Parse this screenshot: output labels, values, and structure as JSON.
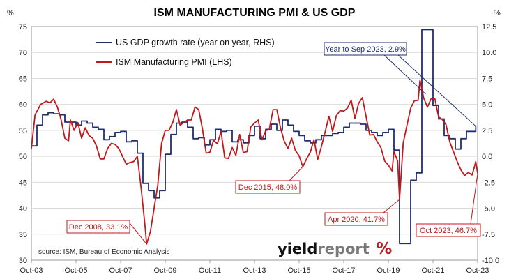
{
  "chart_data": {
    "type": "line",
    "title": "ISM MANUFACTURING PMI & US GDP",
    "left_axis": {
      "unit": "%",
      "range": [
        30,
        75
      ],
      "ticks": [
        "30",
        "35",
        "40",
        "45",
        "50",
        "55",
        "60",
        "65",
        "70",
        "75"
      ]
    },
    "right_axis": {
      "unit": "%",
      "range": [
        -10,
        12.5
      ],
      "ticks": [
        "-10.0",
        "-7.5",
        "-5.0",
        "-2.5",
        "0.0",
        "2.5",
        "5.0",
        "7.5",
        "10.0",
        "12.5"
      ]
    },
    "x_axis": {
      "range": [
        "Oct-03",
        "Oct-23"
      ],
      "ticks": [
        "Oct-03",
        "Oct-05",
        "Oct-07",
        "Oct-09",
        "Oct-11",
        "Oct-13",
        "Oct-15",
        "Oct-17",
        "Oct-19",
        "Oct-21",
        "Oct-23"
      ]
    },
    "series": [
      {
        "name": "US GDP growth rate (year on year, RHS)",
        "axis": "right",
        "color": "#1f2f6b",
        "points": [
          [
            "2003-10",
            1.0
          ],
          [
            "2004-01",
            3.0
          ],
          [
            "2004-04",
            4.0
          ],
          [
            "2004-07",
            4.2
          ],
          [
            "2004-10",
            4.1
          ],
          [
            "2005-01",
            4.0
          ],
          [
            "2005-04",
            3.3
          ],
          [
            "2005-07",
            3.3
          ],
          [
            "2005-10",
            3.0
          ],
          [
            "2006-01",
            3.4
          ],
          [
            "2006-04",
            3.2
          ],
          [
            "2006-07",
            2.8
          ],
          [
            "2006-10",
            2.6
          ],
          [
            "2007-01",
            1.6
          ],
          [
            "2007-04",
            1.9
          ],
          [
            "2007-07",
            2.3
          ],
          [
            "2007-10",
            2.4
          ],
          [
            "2008-01",
            1.4
          ],
          [
            "2008-04",
            1.5
          ],
          [
            "2008-07",
            0.3
          ],
          [
            "2008-10",
            -2.6
          ],
          [
            "2009-01",
            -3.3
          ],
          [
            "2009-04",
            -4.0
          ],
          [
            "2009-07",
            -3.3
          ],
          [
            "2009-10",
            0.2
          ],
          [
            "2010-01",
            2.1
          ],
          [
            "2010-04",
            3.2
          ],
          [
            "2010-07",
            3.3
          ],
          [
            "2010-10",
            2.8
          ],
          [
            "2011-01",
            1.7
          ],
          [
            "2011-04",
            1.8
          ],
          [
            "2011-07",
            1.1
          ],
          [
            "2011-10",
            1.6
          ],
          [
            "2012-01",
            2.6
          ],
          [
            "2012-04",
            2.4
          ],
          [
            "2012-07",
            2.5
          ],
          [
            "2012-10",
            1.4
          ],
          [
            "2013-01",
            1.6
          ],
          [
            "2013-04",
            1.3
          ],
          [
            "2013-07",
            2.0
          ],
          [
            "2013-10",
            2.9
          ],
          [
            "2014-01",
            1.7
          ],
          [
            "2014-04",
            2.6
          ],
          [
            "2014-07",
            3.1
          ],
          [
            "2014-10",
            2.5
          ],
          [
            "2015-01",
            3.5
          ],
          [
            "2015-04",
            3.0
          ],
          [
            "2015-07",
            2.4
          ],
          [
            "2015-10",
            2.0
          ],
          [
            "2016-01",
            1.5
          ],
          [
            "2016-04",
            1.3
          ],
          [
            "2016-07",
            1.6
          ],
          [
            "2016-10",
            2.0
          ],
          [
            "2017-01",
            2.0
          ],
          [
            "2017-04",
            2.2
          ],
          [
            "2017-07",
            2.3
          ],
          [
            "2017-10",
            2.8
          ],
          [
            "2018-01",
            3.2
          ],
          [
            "2018-04",
            3.2
          ],
          [
            "2018-07",
            3.1
          ],
          [
            "2018-10",
            2.5
          ],
          [
            "2019-01",
            2.3
          ],
          [
            "2019-04",
            2.0
          ],
          [
            "2019-07",
            2.3
          ],
          [
            "2019-10",
            2.6
          ],
          [
            "2020-01",
            0.6
          ],
          [
            "2020-04",
            -8.4
          ],
          [
            "2020-07",
            -8.4
          ],
          [
            "2020-10",
            -2.3
          ],
          [
            "2021-01",
            -1.6
          ],
          [
            "2021-04",
            12.2
          ],
          [
            "2021-07",
            12.2
          ],
          [
            "2021-10",
            4.9
          ],
          [
            "2022-01",
            3.6
          ],
          [
            "2022-04",
            2.0
          ],
          [
            "2022-07",
            1.7
          ],
          [
            "2022-10",
            0.7
          ],
          [
            "2023-01",
            1.7
          ],
          [
            "2023-04",
            2.4
          ],
          [
            "2023-07",
            2.4
          ],
          [
            "2023-09",
            2.9
          ]
        ]
      },
      {
        "name": "ISM Manufacturing PMI (LHS)",
        "axis": "left",
        "color": "#c0191b",
        "points": [
          [
            "2003-10",
            51.5
          ],
          [
            "2003-12",
            58.0
          ],
          [
            "2004-03",
            60.0
          ],
          [
            "2004-06",
            60.6
          ],
          [
            "2004-08",
            60.3
          ],
          [
            "2004-10",
            61.0
          ],
          [
            "2004-12",
            59.5
          ],
          [
            "2005-02",
            57.0
          ],
          [
            "2005-04",
            53.5
          ],
          [
            "2005-06",
            53.0
          ],
          [
            "2005-07",
            57.0
          ],
          [
            "2005-09",
            55.0
          ],
          [
            "2005-11",
            56.5
          ],
          [
            "2006-01",
            53.5
          ],
          [
            "2006-03",
            55.5
          ],
          [
            "2006-05",
            54.0
          ],
          [
            "2006-07",
            53.5
          ],
          [
            "2006-09",
            52.0
          ],
          [
            "2006-11",
            49.5
          ],
          [
            "2007-01",
            49.5
          ],
          [
            "2007-03",
            51.5
          ],
          [
            "2007-05",
            52.5
          ],
          [
            "2007-07",
            52.3
          ],
          [
            "2007-09",
            51.5
          ],
          [
            "2007-11",
            50.0
          ],
          [
            "2008-01",
            48.5
          ],
          [
            "2008-03",
            48.8
          ],
          [
            "2008-05",
            49.0
          ],
          [
            "2008-07",
            50.0
          ],
          [
            "2008-09",
            44.0
          ],
          [
            "2008-11",
            37.0
          ],
          [
            "2008-12",
            33.1
          ],
          [
            "2009-02",
            35.5
          ],
          [
            "2009-04",
            40.0
          ],
          [
            "2009-06",
            44.5
          ],
          [
            "2009-08",
            52.5
          ],
          [
            "2009-10",
            55.0
          ],
          [
            "2009-12",
            55.0
          ],
          [
            "2010-02",
            56.5
          ],
          [
            "2010-04",
            59.0
          ],
          [
            "2010-06",
            56.0
          ],
          [
            "2010-08",
            56.5
          ],
          [
            "2010-10",
            57.0
          ],
          [
            "2010-12",
            57.0
          ],
          [
            "2011-02",
            59.5
          ],
          [
            "2011-04",
            59.0
          ],
          [
            "2011-06",
            55.3
          ],
          [
            "2011-08",
            50.6
          ],
          [
            "2011-10",
            50.8
          ],
          [
            "2011-12",
            53.1
          ],
          [
            "2012-02",
            52.4
          ],
          [
            "2012-04",
            54.8
          ],
          [
            "2012-06",
            49.7
          ],
          [
            "2012-08",
            49.6
          ],
          [
            "2012-10",
            51.7
          ],
          [
            "2012-12",
            50.2
          ],
          [
            "2013-02",
            54.2
          ],
          [
            "2013-04",
            50.7
          ],
          [
            "2013-06",
            50.9
          ],
          [
            "2013-08",
            55.7
          ],
          [
            "2013-10",
            56.4
          ],
          [
            "2013-12",
            57.0
          ],
          [
            "2014-02",
            53.2
          ],
          [
            "2014-04",
            54.9
          ],
          [
            "2014-06",
            55.3
          ],
          [
            "2014-08",
            59.0
          ],
          [
            "2014-10",
            59.0
          ],
          [
            "2014-12",
            55.5
          ],
          [
            "2015-02",
            52.9
          ],
          [
            "2015-04",
            51.5
          ],
          [
            "2015-06",
            53.5
          ],
          [
            "2015-08",
            51.1
          ],
          [
            "2015-10",
            50.1
          ],
          [
            "2015-12",
            48.0
          ],
          [
            "2016-02",
            49.5
          ],
          [
            "2016-04",
            50.8
          ],
          [
            "2016-06",
            53.2
          ],
          [
            "2016-08",
            49.4
          ],
          [
            "2016-10",
            51.9
          ],
          [
            "2016-12",
            54.7
          ],
          [
            "2017-02",
            57.7
          ],
          [
            "2017-04",
            54.8
          ],
          [
            "2017-06",
            57.8
          ],
          [
            "2017-08",
            58.8
          ],
          [
            "2017-10",
            58.7
          ],
          [
            "2017-12",
            59.3
          ],
          [
            "2018-02",
            60.8
          ],
          [
            "2018-04",
            57.3
          ],
          [
            "2018-06",
            60.2
          ],
          [
            "2018-08",
            61.3
          ],
          [
            "2018-10",
            57.7
          ],
          [
            "2018-12",
            54.1
          ],
          [
            "2019-02",
            54.2
          ],
          [
            "2019-04",
            52.8
          ],
          [
            "2019-06",
            51.7
          ],
          [
            "2019-08",
            49.1
          ],
          [
            "2019-10",
            48.3
          ],
          [
            "2019-12",
            47.2
          ],
          [
            "2020-01",
            50.9
          ],
          [
            "2020-03",
            49.1
          ],
          [
            "2020-04",
            41.7
          ],
          [
            "2020-06",
            52.6
          ],
          [
            "2020-08",
            56.0
          ],
          [
            "2020-10",
            59.3
          ],
          [
            "2020-12",
            60.7
          ],
          [
            "2021-02",
            60.8
          ],
          [
            "2021-03",
            64.7
          ],
          [
            "2021-05",
            61.2
          ],
          [
            "2021-07",
            59.5
          ],
          [
            "2021-09",
            61.1
          ],
          [
            "2021-11",
            61.1
          ],
          [
            "2022-01",
            57.6
          ],
          [
            "2022-03",
            57.1
          ],
          [
            "2022-05",
            56.1
          ],
          [
            "2022-07",
            52.8
          ],
          [
            "2022-09",
            50.9
          ],
          [
            "2022-11",
            49.0
          ],
          [
            "2023-01",
            47.4
          ],
          [
            "2023-03",
            46.3
          ],
          [
            "2023-05",
            46.9
          ],
          [
            "2023-07",
            46.4
          ],
          [
            "2023-08",
            47.6
          ],
          [
            "2023-09",
            49.0
          ],
          [
            "2023-10",
            46.7
          ]
        ]
      }
    ],
    "legend_position": "top-left",
    "annotations": [
      {
        "text": "Year to Sep 2023, 2.9%",
        "target": [
          "2023-09",
          2.9
        ],
        "axis": "right",
        "color": "#1f2f6b"
      },
      {
        "text": "Dec 2015, 48.0%",
        "target": [
          "2015-12",
          48.0
        ],
        "axis": "left",
        "color": "#c0191b"
      },
      {
        "text": "Dec 2008, 33.1%",
        "target": [
          "2008-12",
          33.1
        ],
        "axis": "left",
        "color": "#c0191b"
      },
      {
        "text": "Apr 2020, 41.7%",
        "target": [
          "2020-04",
          41.7
        ],
        "axis": "left",
        "color": "#c0191b"
      },
      {
        "text": "Oct 2023, 46.7%",
        "target": [
          "2023-10",
          46.7
        ],
        "axis": "left",
        "color": "#c0191b"
      }
    ],
    "source": "source: ISM, Bureau of Economic Analysis",
    "brand": {
      "bold": "yield",
      "light": "report",
      "symbol": "%"
    }
  }
}
